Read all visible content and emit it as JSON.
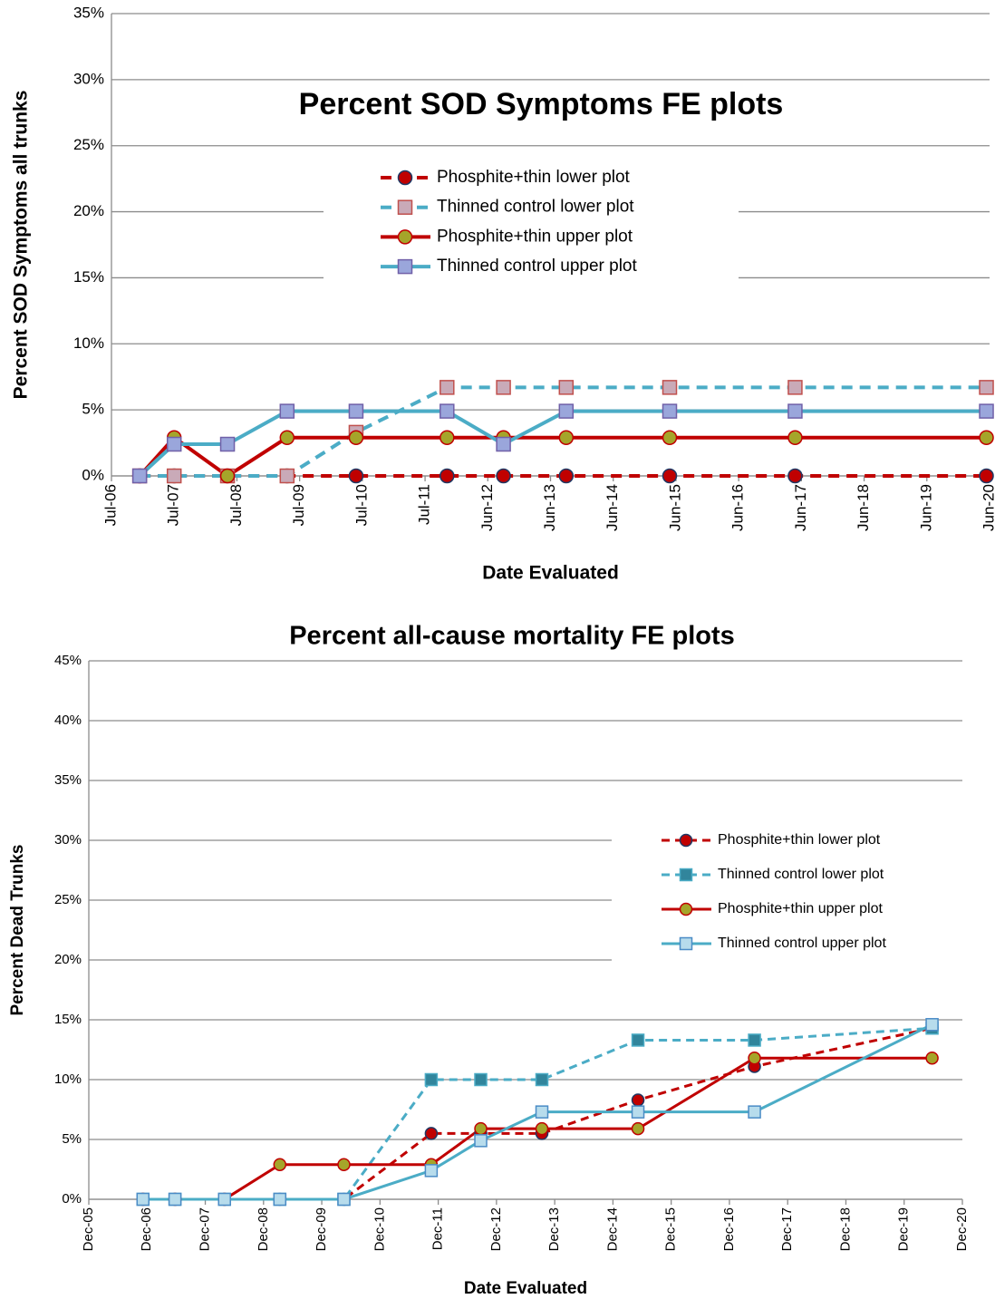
{
  "chart_data": [
    {
      "type": "line",
      "title": "Percent  SOD Symptoms FE plots",
      "y_label": "Percent SOD Symptoms  all trunks",
      "x_label": "Date Evaluated",
      "x": [
        2006.95,
        2007.5,
        2008.35,
        2009.3,
        2010.4,
        2011.85,
        2012.75,
        2013.75,
        2015.4,
        2017.4,
        2020.45
      ],
      "xlim": [
        2006.5,
        2020.5
      ],
      "xticks": [
        {
          "value": 2006.5,
          "label": "Jul-06"
        },
        {
          "value": 2007.5,
          "label": "Jul-07"
        },
        {
          "value": 2008.5,
          "label": "Jul-08"
        },
        {
          "value": 2009.5,
          "label": "Jul-09"
        },
        {
          "value": 2010.5,
          "label": "Jul-10"
        },
        {
          "value": 2011.5,
          "label": "Jul-11"
        },
        {
          "value": 2012.5,
          "label": "Jun-12"
        },
        {
          "value": 2013.5,
          "label": "Jun-13"
        },
        {
          "value": 2014.5,
          "label": "Jun-14"
        },
        {
          "value": 2015.5,
          "label": "Jun-15"
        },
        {
          "value": 2016.5,
          "label": "Jun-16"
        },
        {
          "value": 2017.5,
          "label": "Jun-17"
        },
        {
          "value": 2018.5,
          "label": "Jun-18"
        },
        {
          "value": 2019.5,
          "label": "Jun-19"
        },
        {
          "value": 2020.5,
          "label": "Jun-20"
        }
      ],
      "ylim": [
        0,
        35
      ],
      "yticks": [
        {
          "value": 0,
          "label": "0%"
        },
        {
          "value": 5,
          "label": "5%"
        },
        {
          "value": 10,
          "label": "10%"
        },
        {
          "value": 15,
          "label": "15%"
        },
        {
          "value": 20,
          "label": "20%"
        },
        {
          "value": 25,
          "label": "25%"
        },
        {
          "value": 30,
          "label": "30%"
        },
        {
          "value": 35,
          "label": "35%"
        }
      ],
      "grid": true,
      "legend": "upper center",
      "series": [
        {
          "name": "Phosphite+thin lower plot",
          "color": "#c00000",
          "dash": "dashed",
          "marker": "circle",
          "marker_fill": "#c00000",
          "marker_edge": "#1f3864",
          "values": [
            0,
            0,
            0,
            0,
            0,
            0,
            0,
            0,
            0,
            0,
            0
          ]
        },
        {
          "name": "Thinned control lower plot",
          "color": "#4bacc6",
          "dash": "dashed",
          "marker": "square",
          "marker_fill": "#c9aab8",
          "marker_edge": "#c0504d",
          "values": [
            0,
            0,
            0,
            0,
            3.3,
            6.7,
            6.7,
            6.7,
            6.7,
            6.7,
            6.7
          ]
        },
        {
          "name": "Phosphite+thin upper plot",
          "color": "#c00000",
          "dash": "solid",
          "marker": "circle",
          "marker_fill": "#a5a52a",
          "marker_edge": "#c00000",
          "values": [
            0,
            2.9,
            0,
            2.9,
            2.9,
            2.9,
            2.9,
            2.9,
            2.9,
            2.9,
            2.9
          ]
        },
        {
          "name": "Thinned control upper plot",
          "color": "#4bacc6",
          "dash": "solid",
          "marker": "square",
          "marker_fill": "#9aa6db",
          "marker_edge": "#7060a8",
          "values": [
            0,
            2.4,
            2.4,
            4.9,
            4.9,
            4.9,
            2.4,
            4.9,
            4.9,
            4.9,
            4.9
          ]
        }
      ]
    },
    {
      "type": "line",
      "title": "Percent  all-cause mortality FE plots",
      "y_label": "Percent Dead Trunks",
      "x_label": "Date Evaluated",
      "x": [
        2006.85,
        2007.4,
        2008.25,
        2009.2,
        2010.3,
        2011.8,
        2012.65,
        2013.7,
        2015.35,
        2017.35,
        2020.4
      ],
      "xlim": [
        2005.92,
        2020.92
      ],
      "xticks": [
        {
          "value": 2005.92,
          "label": "Dec-05"
        },
        {
          "value": 2006.92,
          "label": "Dec-06"
        },
        {
          "value": 2007.92,
          "label": "Dec-07"
        },
        {
          "value": 2008.92,
          "label": "Dec-08"
        },
        {
          "value": 2009.92,
          "label": "Dec-09"
        },
        {
          "value": 2010.92,
          "label": "Dec-10"
        },
        {
          "value": 2011.92,
          "label": "Dec-11"
        },
        {
          "value": 2012.92,
          "label": "Dec-12"
        },
        {
          "value": 2013.92,
          "label": "Dec-13"
        },
        {
          "value": 2014.92,
          "label": "Dec-14"
        },
        {
          "value": 2015.92,
          "label": "Dec-15"
        },
        {
          "value": 2016.92,
          "label": "Dec-16"
        },
        {
          "value": 2017.92,
          "label": "Dec-17"
        },
        {
          "value": 2018.92,
          "label": "Dec-18"
        },
        {
          "value": 2019.92,
          "label": "Dec-19"
        },
        {
          "value": 2020.92,
          "label": "Dec-20"
        }
      ],
      "ylim": [
        0,
        45
      ],
      "yticks": [
        {
          "value": 0,
          "label": "0%"
        },
        {
          "value": 5,
          "label": "5%"
        },
        {
          "value": 10,
          "label": "10%"
        },
        {
          "value": 15,
          "label": "15%"
        },
        {
          "value": 20,
          "label": "20%"
        },
        {
          "value": 25,
          "label": "25%"
        },
        {
          "value": 30,
          "label": "30%"
        },
        {
          "value": 35,
          "label": "35%"
        },
        {
          "value": 40,
          "label": "40%"
        },
        {
          "value": 45,
          "label": "45%"
        }
      ],
      "grid": true,
      "legend": "center right",
      "series": [
        {
          "name": "Phosphite+thin lower plot",
          "color": "#c00000",
          "dash": "dashed",
          "marker": "circle",
          "marker_fill": "#c00000",
          "marker_edge": "#1f3864",
          "values": [
            0,
            0,
            0,
            0,
            0,
            5.5,
            5.5,
            5.5,
            8.3,
            11.1,
            14.3
          ]
        },
        {
          "name": "Thinned control lower plot",
          "color": "#4bacc6",
          "dash": "dashed",
          "marker": "square",
          "marker_fill": "#31859c",
          "marker_edge": "#4bacc6",
          "values": [
            0,
            0,
            0,
            0,
            0,
            10,
            10,
            10,
            13.3,
            13.3,
            14.3
          ]
        },
        {
          "name": "Phosphite+thin upper plot",
          "color": "#c00000",
          "dash": "solid",
          "marker": "circle",
          "marker_fill": "#a5a52a",
          "marker_edge": "#c00000",
          "values": [
            0,
            0,
            0,
            2.9,
            2.9,
            2.9,
            5.9,
            5.9,
            5.9,
            11.8,
            11.8
          ]
        },
        {
          "name": "Thinned control upper plot",
          "color": "#4bacc6",
          "dash": "solid",
          "marker": "square",
          "marker_fill": "#b7dcec",
          "marker_edge": "#4b8cc6",
          "values": [
            0,
            0,
            0,
            0,
            0,
            2.4,
            4.9,
            7.3,
            7.3,
            7.3,
            14.6
          ]
        }
      ]
    }
  ]
}
